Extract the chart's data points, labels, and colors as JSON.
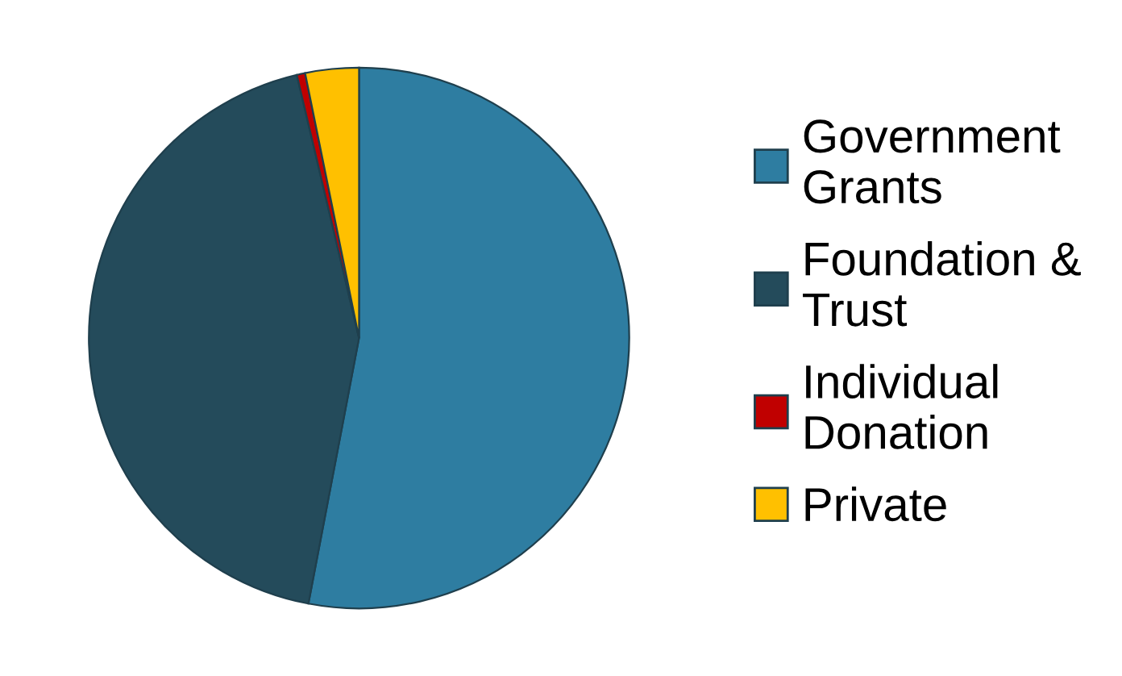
{
  "chart_data": {
    "type": "pie",
    "categories": [
      "Government Grants",
      "Foundation & Trust",
      "Individual Donation",
      "Private"
    ],
    "values": [
      53.0,
      43.3,
      0.5,
      3.2
    ],
    "colors": [
      "#2e7da1",
      "#244b5b",
      "#c00000",
      "#ffc000"
    ],
    "legend": "right"
  }
}
